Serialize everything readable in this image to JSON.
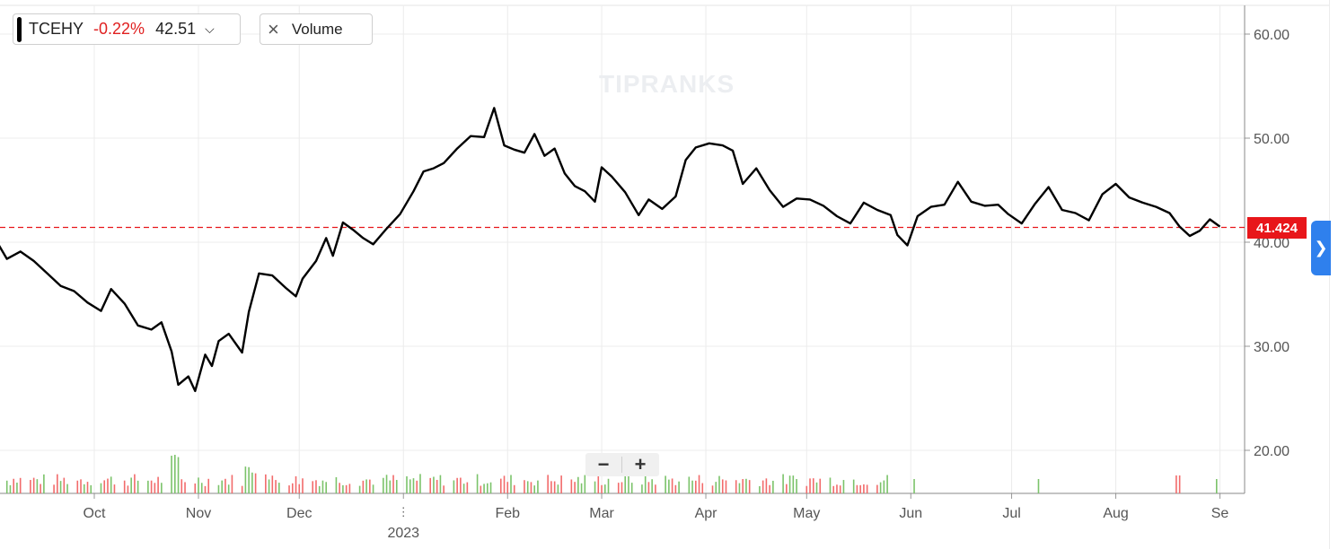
{
  "legend": {
    "ticker": "TCEHY",
    "change": "-0.22%",
    "price": "42.51",
    "caret_icon": "chevron-down-icon"
  },
  "volume_toggle": {
    "close_icon": "close-icon",
    "label": "Volume"
  },
  "watermark": "TIPRANKS",
  "zoom": {
    "minus": "−",
    "plus": "+"
  },
  "current_price_tag": "41.424",
  "side_tab_icon": "chevron-right-icon",
  "colors": {
    "line": "#000000",
    "up_volume": "#7bc36a",
    "down_volume": "#f26b6b",
    "price_line": "#e8161a",
    "accent": "#2f80ed"
  },
  "chart_data": {
    "type": "line",
    "title": "",
    "xlabel": "",
    "ylabel": "",
    "ylim": [
      16.5,
      63
    ],
    "y_ticks": [
      "60.00",
      "50.00",
      "40.00",
      "30.00",
      "20.00"
    ],
    "x_ticks": [
      {
        "date": "2022-10-01",
        "label": "Oct"
      },
      {
        "date": "2022-11-01",
        "label": "Nov"
      },
      {
        "date": "2022-12-01",
        "label": "Dec"
      },
      {
        "date": "2023-01-01",
        "label": "2023",
        "year": true
      },
      {
        "date": "2023-02-01",
        "label": "Feb"
      },
      {
        "date": "2023-03-01",
        "label": "Mar"
      },
      {
        "date": "2023-04-01",
        "label": "Apr"
      },
      {
        "date": "2023-05-01",
        "label": "May"
      },
      {
        "date": "2023-06-01",
        "label": "Jun"
      },
      {
        "date": "2023-07-01",
        "label": "Jul"
      },
      {
        "date": "2023-08-01",
        "label": "Aug"
      },
      {
        "date": "2023-09-01",
        "label": "Se"
      }
    ],
    "current_price": 41.424,
    "series": [
      {
        "points": [
          [
            "2022-09-01",
            40.6
          ],
          [
            "2022-09-05",
            38.4
          ],
          [
            "2022-09-09",
            39.1
          ],
          [
            "2022-09-13",
            38.2
          ],
          [
            "2022-09-17",
            37.0
          ],
          [
            "2022-09-21",
            35.8
          ],
          [
            "2022-09-25",
            35.3
          ],
          [
            "2022-09-29",
            34.2
          ],
          [
            "2022-10-03",
            33.4
          ],
          [
            "2022-10-06",
            35.5
          ],
          [
            "2022-10-10",
            34.1
          ],
          [
            "2022-10-14",
            32.0
          ],
          [
            "2022-10-18",
            31.6
          ],
          [
            "2022-10-21",
            32.3
          ],
          [
            "2022-10-24",
            29.5
          ],
          [
            "2022-10-26",
            26.3
          ],
          [
            "2022-10-29",
            27.1
          ],
          [
            "2022-10-31",
            25.7
          ],
          [
            "2022-11-03",
            29.2
          ],
          [
            "2022-11-05",
            28.1
          ],
          [
            "2022-11-07",
            30.5
          ],
          [
            "2022-11-10",
            31.2
          ],
          [
            "2022-11-14",
            29.4
          ],
          [
            "2022-11-16",
            33.3
          ],
          [
            "2022-11-19",
            37.0
          ],
          [
            "2022-11-23",
            36.8
          ],
          [
            "2022-11-27",
            35.6
          ],
          [
            "2022-11-30",
            34.8
          ],
          [
            "2022-12-02",
            36.5
          ],
          [
            "2022-12-06",
            38.2
          ],
          [
            "2022-12-09",
            40.4
          ],
          [
            "2022-12-11",
            38.7
          ],
          [
            "2022-12-14",
            41.9
          ],
          [
            "2022-12-17",
            41.2
          ],
          [
            "2022-12-20",
            40.4
          ],
          [
            "2022-12-23",
            39.8
          ],
          [
            "2022-12-27",
            41.3
          ],
          [
            "2022-12-31",
            42.7
          ],
          [
            "2023-01-04",
            44.9
          ],
          [
            "2023-01-07",
            46.8
          ],
          [
            "2023-01-10",
            47.1
          ],
          [
            "2023-01-13",
            47.6
          ],
          [
            "2023-01-17",
            49.0
          ],
          [
            "2023-01-21",
            50.2
          ],
          [
            "2023-01-25",
            50.1
          ],
          [
            "2023-01-28",
            52.9
          ],
          [
            "2023-01-31",
            49.3
          ],
          [
            "2023-02-03",
            48.9
          ],
          [
            "2023-02-06",
            48.6
          ],
          [
            "2023-02-09",
            50.4
          ],
          [
            "2023-02-12",
            48.3
          ],
          [
            "2023-02-15",
            49.0
          ],
          [
            "2023-02-18",
            46.6
          ],
          [
            "2023-02-21",
            45.4
          ],
          [
            "2023-02-24",
            44.9
          ],
          [
            "2023-02-27",
            43.9
          ],
          [
            "2023-03-01",
            47.2
          ],
          [
            "2023-03-04",
            46.3
          ],
          [
            "2023-03-08",
            44.8
          ],
          [
            "2023-03-12",
            42.6
          ],
          [
            "2023-03-15",
            44.1
          ],
          [
            "2023-03-19",
            43.2
          ],
          [
            "2023-03-23",
            44.4
          ],
          [
            "2023-03-26",
            47.9
          ],
          [
            "2023-03-29",
            49.1
          ],
          [
            "2023-04-02",
            49.5
          ],
          [
            "2023-04-06",
            49.3
          ],
          [
            "2023-04-09",
            48.8
          ],
          [
            "2023-04-12",
            45.6
          ],
          [
            "2023-04-16",
            47.1
          ],
          [
            "2023-04-20",
            45.0
          ],
          [
            "2023-04-24",
            43.4
          ],
          [
            "2023-04-28",
            44.2
          ],
          [
            "2023-05-02",
            44.1
          ],
          [
            "2023-05-06",
            43.5
          ],
          [
            "2023-05-10",
            42.5
          ],
          [
            "2023-05-14",
            41.8
          ],
          [
            "2023-05-18",
            43.8
          ],
          [
            "2023-05-22",
            43.1
          ],
          [
            "2023-05-26",
            42.6
          ],
          [
            "2023-05-28",
            40.7
          ],
          [
            "2023-05-31",
            39.7
          ],
          [
            "2023-06-03",
            42.5
          ],
          [
            "2023-06-07",
            43.4
          ],
          [
            "2023-06-11",
            43.6
          ],
          [
            "2023-06-15",
            45.8
          ],
          [
            "2023-06-19",
            43.9
          ],
          [
            "2023-06-23",
            43.5
          ],
          [
            "2023-06-27",
            43.6
          ],
          [
            "2023-06-30",
            42.7
          ],
          [
            "2023-07-04",
            41.8
          ],
          [
            "2023-07-08",
            43.7
          ],
          [
            "2023-07-12",
            45.3
          ],
          [
            "2023-07-16",
            43.1
          ],
          [
            "2023-07-20",
            42.8
          ],
          [
            "2023-07-24",
            42.1
          ],
          [
            "2023-07-28",
            44.6
          ],
          [
            "2023-08-01",
            45.6
          ],
          [
            "2023-08-05",
            44.3
          ],
          [
            "2023-08-09",
            43.8
          ],
          [
            "2023-08-13",
            43.4
          ],
          [
            "2023-08-17",
            42.8
          ],
          [
            "2023-08-20",
            41.5
          ],
          [
            "2023-08-23",
            40.6
          ],
          [
            "2023-08-26",
            41.1
          ],
          [
            "2023-08-29",
            42.2
          ],
          [
            "2023-09-01",
            41.5
          ]
        ]
      }
    ],
    "volume": [
      {
        "from": "2022-09-01",
        "to": "2023-05-25",
        "note": "daily volume bars, green up / red down"
      },
      {
        "date": "2023-06-02",
        "dir": "up"
      },
      {
        "date": "2023-07-09",
        "dir": "up"
      },
      {
        "date": "2023-08-19",
        "dir": "down"
      },
      {
        "date": "2023-08-20",
        "dir": "down"
      },
      {
        "date": "2023-08-31",
        "dir": "up"
      }
    ]
  }
}
